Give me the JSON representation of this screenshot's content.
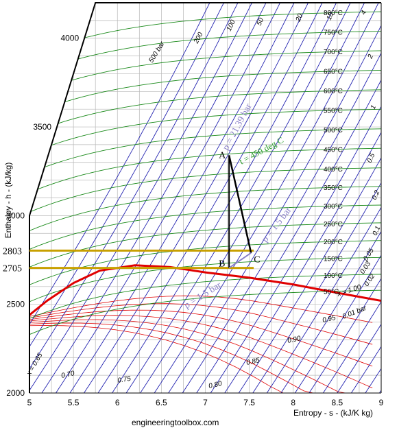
{
  "chart_data": {
    "type": "line",
    "title": "",
    "xlabel": "Entropy - s - (kJ/K kg)",
    "ylabel": "Enthalpy - h - (kJ/kg)",
    "xlim": [
      5,
      9
    ],
    "ylim": [
      2000,
      4200
    ],
    "x_ticks": [
      "5",
      "5.5",
      "6",
      "6.5",
      "7",
      "7.5",
      "8",
      "8.5",
      "9"
    ],
    "y_ticks": [
      "2000",
      "2500",
      "3000",
      "3500",
      "4000"
    ],
    "grid": true,
    "source": "engineeringtoolbox.com",
    "highlight_lines": [
      {
        "label": "2803",
        "h": 2803,
        "color": "#c8a000"
      },
      {
        "label": "2705",
        "h": 2705,
        "color": "#c8a000"
      }
    ],
    "points": [
      {
        "label": "A",
        "s": 7.27,
        "h": 3340
      },
      {
        "label": "B",
        "s": 7.27,
        "h": 2705
      },
      {
        "label": "C",
        "s": 7.52,
        "h": 2790
      }
    ],
    "process_labels": [
      {
        "text": "p = 21.39 bar",
        "color": "#8a80c8"
      },
      {
        "text": "t = 450 deg C",
        "color": "#2e9e2e"
      },
      {
        "text": "p = 1.5 bar",
        "color": "#8a80c8"
      },
      {
        "text": "p = 1.5 bar",
        "color": "#8a80c8"
      }
    ],
    "isotherms": [
      {
        "label": "800°C",
        "h_end": 4160
      },
      {
        "label": "750°C",
        "h_end": 4050
      },
      {
        "label": "700°C",
        "h_end": 3940
      },
      {
        "label": "650°C",
        "h_end": 3830
      },
      {
        "label": "600°C",
        "h_end": 3720
      },
      {
        "label": "550°C",
        "h_end": 3610
      },
      {
        "label": "500°C",
        "h_end": 3500
      },
      {
        "label": "450°C",
        "h_end": 3390
      },
      {
        "label": "400°C",
        "h_end": 3280
      },
      {
        "label": "350°C",
        "h_end": 3175
      },
      {
        "label": "300°C",
        "h_end": 3070
      },
      {
        "label": "250°C",
        "h_end": 2970
      },
      {
        "label": "200°C",
        "h_end": 2870
      },
      {
        "label": "150°C",
        "h_end": 2775
      },
      {
        "label": "100°C",
        "h_end": 2680
      },
      {
        "label": "50°C",
        "h_end": 2590
      }
    ],
    "isobar_labels": [
      "500 bar",
      "200",
      "100",
      "50",
      "20",
      "10",
      "4",
      "2",
      "1",
      "0.5",
      "0.2",
      "0.1",
      "0.05",
      "0.03",
      "0.02",
      "0.01 bar"
    ],
    "quality_labels": [
      "x = 1.00",
      "0.95",
      "0.90",
      "0.85",
      "0.80",
      "0.75",
      "0.70",
      "x = 0.65"
    ],
    "saturation_curve": [
      {
        "s": 5.0,
        "h": 2440
      },
      {
        "s": 5.2,
        "h": 2520
      },
      {
        "s": 5.5,
        "h": 2620
      },
      {
        "s": 5.8,
        "h": 2690
      },
      {
        "s": 6.2,
        "h": 2720
      },
      {
        "s": 6.6,
        "h": 2710
      },
      {
        "s": 7.0,
        "h": 2680
      },
      {
        "s": 7.5,
        "h": 2650
      },
      {
        "s": 8.0,
        "h": 2612
      },
      {
        "s": 8.5,
        "h": 2565
      },
      {
        "s": 9.0,
        "h": 2520
      }
    ]
  }
}
